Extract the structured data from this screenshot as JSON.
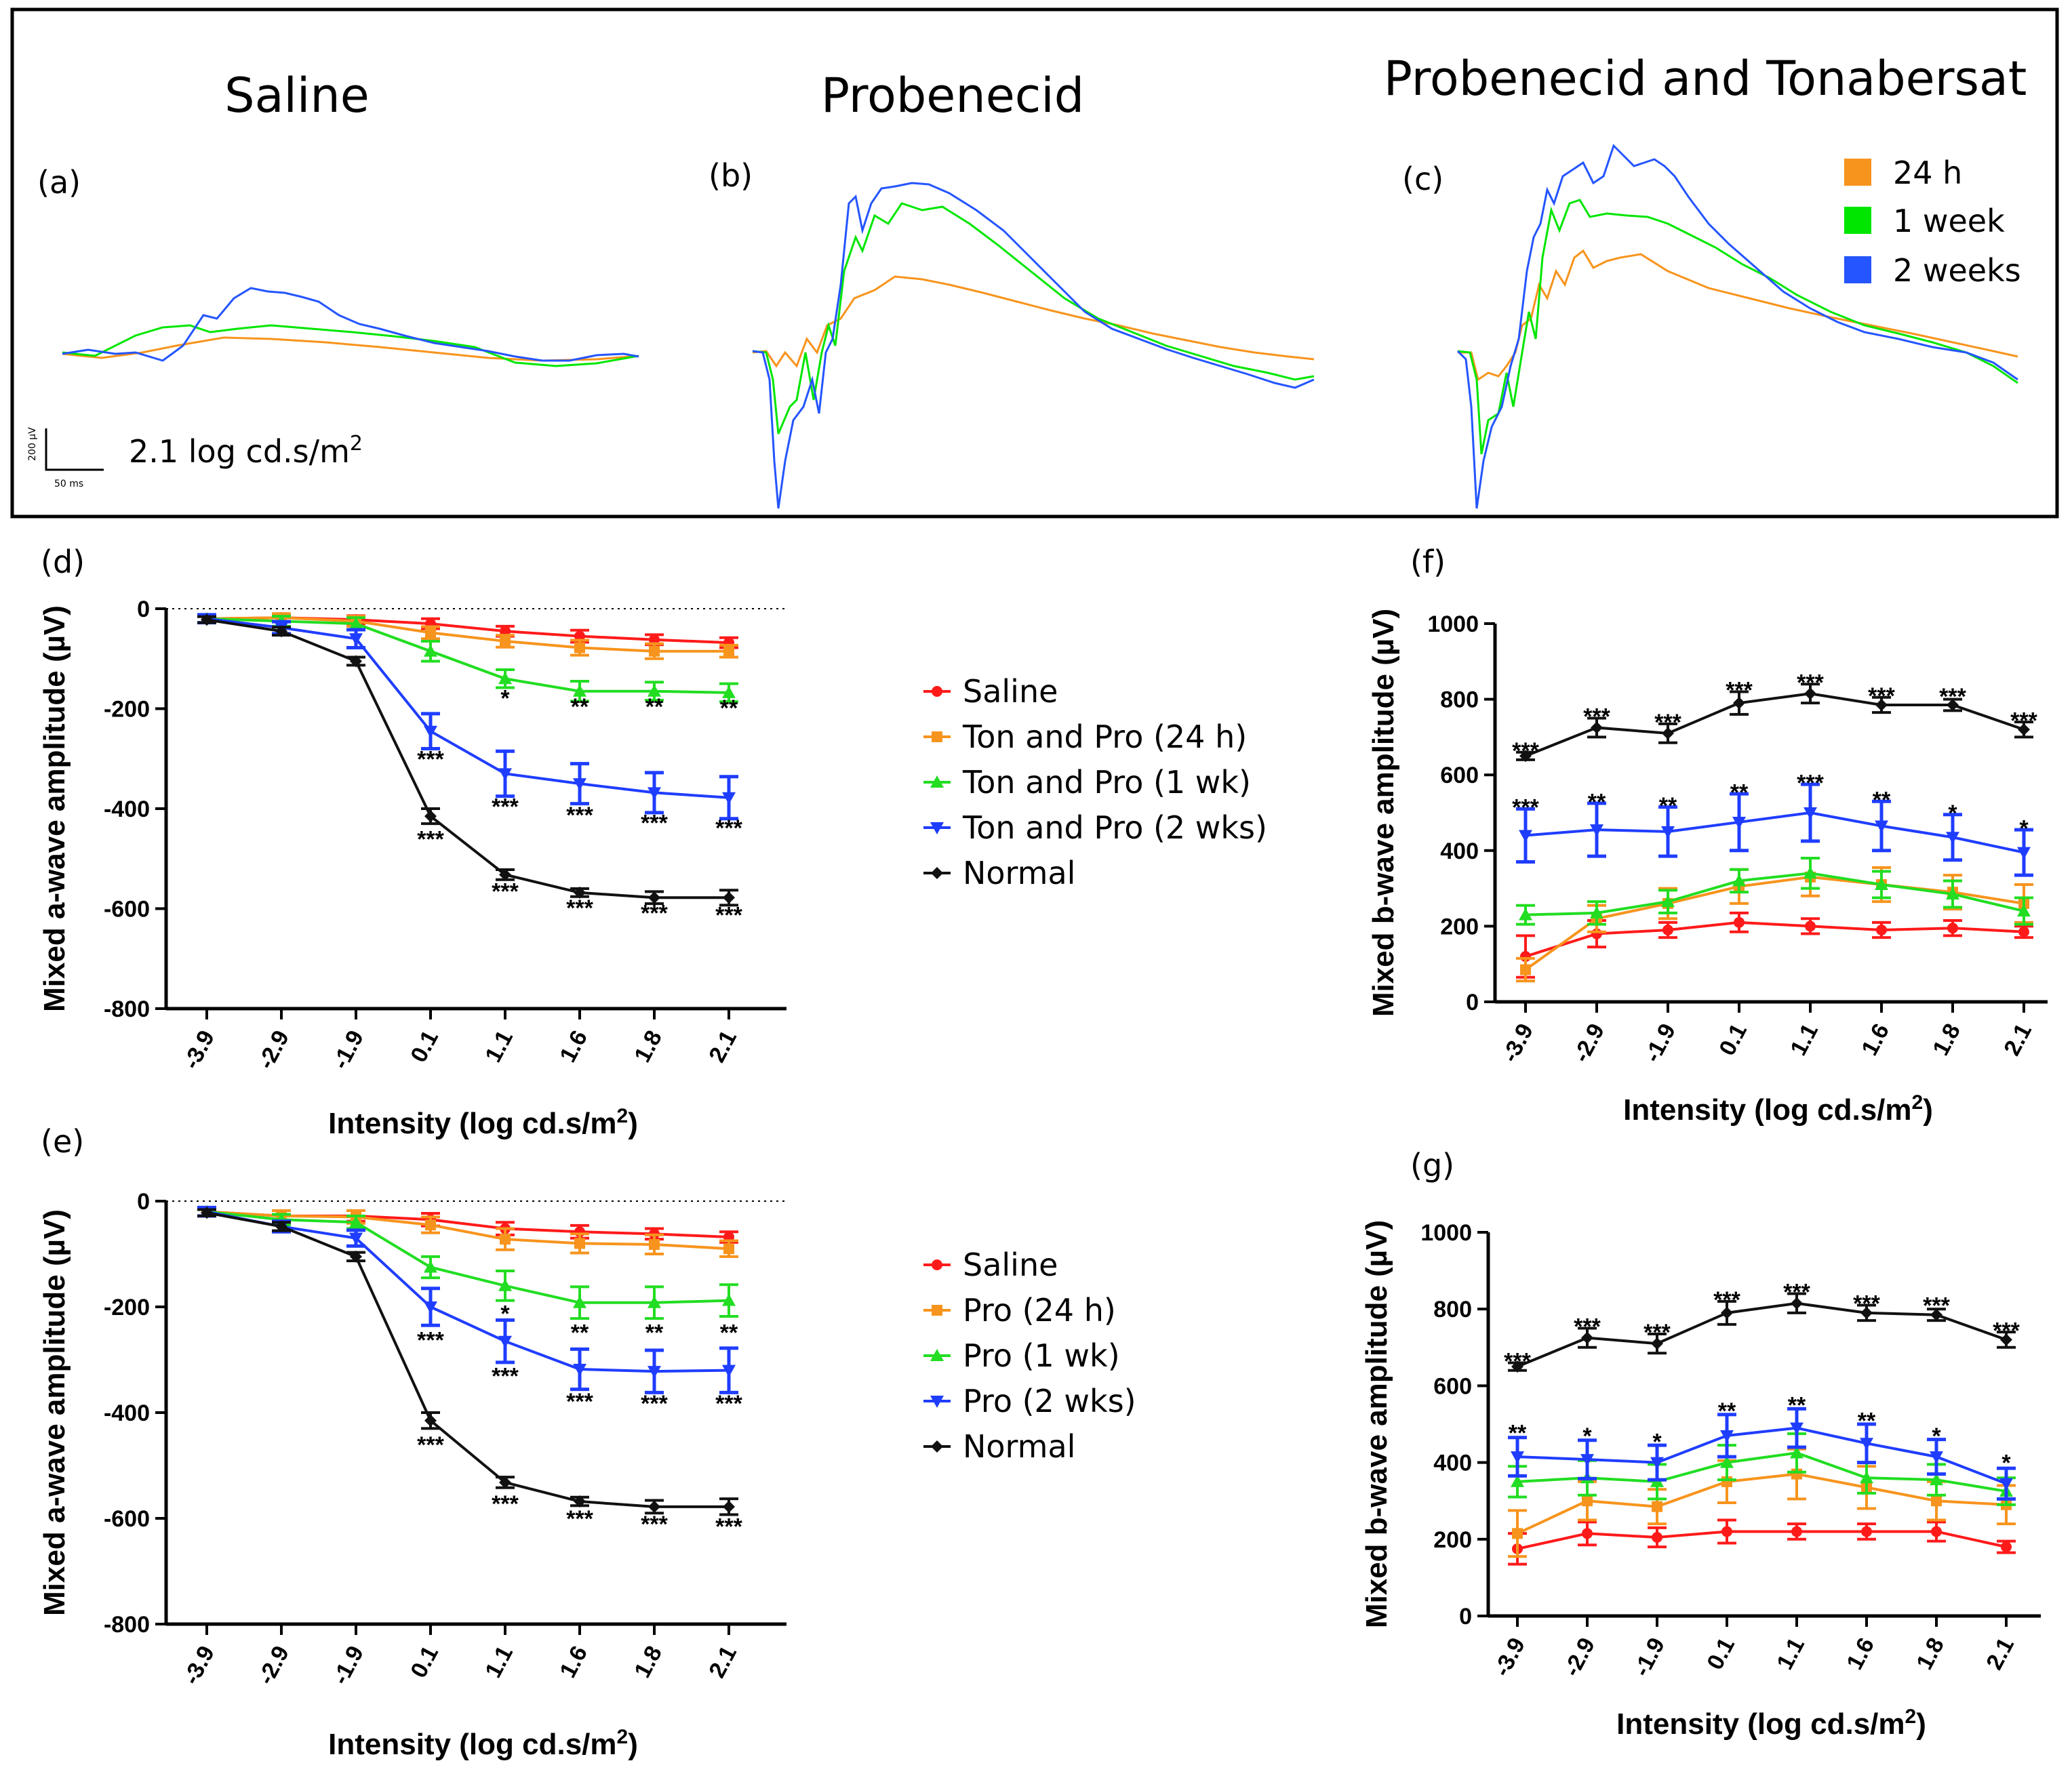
{
  "top_panels": [
    {
      "letter": "(a)",
      "title": "Saline"
    },
    {
      "letter": "(b)",
      "title": "Probenecid"
    },
    {
      "letter": "(c)",
      "title": "Probenecid and Tonabersat"
    }
  ],
  "trace_legend": [
    {
      "label": "24 h",
      "color": "#f7941d"
    },
    {
      "label": "1 week",
      "color": "#00e600"
    },
    {
      "label": "2 weeks",
      "color": "#2455ff"
    }
  ],
  "scale_bar": {
    "intensity_label": "2.1 log cd.s/m",
    "intensity_sup": "2",
    "y_label": "200 µV",
    "x_label": "50 ms"
  },
  "series_colors": {
    "Saline": "#ff1a1a",
    "24h": "#f7941d",
    "1wk": "#22dd22",
    "2wks": "#1f3dff",
    "Normal": "#111111"
  },
  "chart_data": [
    {
      "id": "d",
      "letter": "(d)",
      "type": "line",
      "ylabel": "Mixed a-wave amplitude (µV)",
      "xlabel": "Intensity  (log cd.s/m",
      "xlabel_sup": "2",
      "xlabel_end": ")",
      "categories": [
        "-3.9",
        "-2.9",
        "-1.9",
        "0.1",
        "1.1",
        "1.6",
        "1.8",
        "2.1"
      ],
      "ylim": [
        -800,
        0
      ],
      "yticks": [
        0,
        -200,
        -400,
        -600,
        -800
      ],
      "zero_line": true,
      "series": [
        {
          "name": "Saline",
          "key": "Saline",
          "values": [
            -20,
            -18,
            -22,
            -30,
            -45,
            -55,
            -62,
            -68
          ],
          "err": [
            8,
            8,
            8,
            10,
            10,
            12,
            10,
            10
          ]
        },
        {
          "name": "Ton and Pro (24 h)",
          "key": "24h",
          "values": [
            -20,
            -18,
            -25,
            -48,
            -65,
            -78,
            -85,
            -85
          ],
          "err": [
            8,
            8,
            10,
            12,
            12,
            15,
            15,
            12
          ]
        },
        {
          "name": "Ton and Pro (1 wk)",
          "key": "1wk",
          "values": [
            -20,
            -25,
            -30,
            -85,
            -140,
            -165,
            -165,
            -168
          ],
          "err": [
            8,
            10,
            12,
            20,
            18,
            20,
            18,
            18
          ]
        },
        {
          "name": "Ton and Pro (2 wks)",
          "key": "2wks",
          "values": [
            -20,
            -38,
            -60,
            -245,
            -330,
            -350,
            -368,
            -378
          ],
          "err": [
            8,
            12,
            18,
            35,
            45,
            40,
            40,
            42
          ]
        },
        {
          "name": "Normal",
          "key": "Normal",
          "values": [
            -22,
            -45,
            -105,
            -415,
            -532,
            -568,
            -578,
            -578
          ],
          "err": [
            6,
            8,
            8,
            15,
            10,
            8,
            12,
            15
          ]
        }
      ],
      "annotations": [
        {
          "x": "1.1",
          "y": -178,
          "text": "*"
        },
        {
          "x": "1.6",
          "y": -195,
          "text": "**"
        },
        {
          "x": "1.8",
          "y": -195,
          "text": "**"
        },
        {
          "x": "2.1",
          "y": -198,
          "text": "**"
        },
        {
          "x": "0.1",
          "y": -300,
          "text": "***"
        },
        {
          "x": "1.1",
          "y": -395,
          "text": "***"
        },
        {
          "x": "1.6",
          "y": -412,
          "text": "***"
        },
        {
          "x": "1.8",
          "y": -428,
          "text": "***"
        },
        {
          "x": "2.1",
          "y": -438,
          "text": "***"
        },
        {
          "x": "0.1",
          "y": -460,
          "text": "***"
        },
        {
          "x": "1.1",
          "y": -565,
          "text": "***"
        },
        {
          "x": "1.6",
          "y": -598,
          "text": "***"
        },
        {
          "x": "1.8",
          "y": -608,
          "text": "***"
        },
        {
          "x": "2.1",
          "y": -612,
          "text": "***"
        }
      ]
    },
    {
      "id": "e",
      "letter": "(e)",
      "type": "line",
      "ylabel": "Mixed a-wave amplitude (µV)",
      "xlabel": "Intensity  (log cd.s/m",
      "xlabel_sup": "2",
      "xlabel_end": ")",
      "categories": [
        "-3.9",
        "-2.9",
        "-1.9",
        "0.1",
        "1.1",
        "1.6",
        "1.8",
        "2.1"
      ],
      "ylim": [
        -800,
        0
      ],
      "yticks": [
        0,
        -200,
        -400,
        -600,
        -800
      ],
      "zero_line": true,
      "series": [
        {
          "name": "Saline",
          "key": "Saline",
          "values": [
            -20,
            -28,
            -28,
            -35,
            -52,
            -58,
            -62,
            -68
          ],
          "err": [
            8,
            10,
            10,
            12,
            12,
            12,
            10,
            10
          ]
        },
        {
          "name": "Pro (24 h)",
          "key": "24h",
          "values": [
            -20,
            -28,
            -30,
            -45,
            -72,
            -80,
            -82,
            -90
          ],
          "err": [
            8,
            10,
            12,
            15,
            20,
            18,
            18,
            15
          ]
        },
        {
          "name": "Pro (1 wk)",
          "key": "1wk",
          "values": [
            -20,
            -35,
            -40,
            -125,
            -160,
            -192,
            -192,
            -188
          ],
          "err": [
            8,
            10,
            12,
            20,
            28,
            30,
            30,
            30
          ]
        },
        {
          "name": "Pro (2 wks)",
          "key": "2wks",
          "values": [
            -20,
            -48,
            -70,
            -200,
            -265,
            -318,
            -322,
            -320
          ],
          "err": [
            8,
            10,
            15,
            35,
            40,
            38,
            40,
            42
          ]
        },
        {
          "name": "Normal",
          "key": "Normal",
          "values": [
            -22,
            -48,
            -105,
            -415,
            -532,
            -568,
            -578,
            -578
          ],
          "err": [
            6,
            8,
            8,
            15,
            10,
            8,
            12,
            15
          ]
        }
      ],
      "annotations": [
        {
          "x": "1.1",
          "y": -212,
          "text": "*"
        },
        {
          "x": "1.6",
          "y": -248,
          "text": "**"
        },
        {
          "x": "1.8",
          "y": -248,
          "text": "**"
        },
        {
          "x": "2.1",
          "y": -248,
          "text": "**"
        },
        {
          "x": "0.1",
          "y": -262,
          "text": "***"
        },
        {
          "x": "1.1",
          "y": -330,
          "text": "***"
        },
        {
          "x": "1.6",
          "y": -378,
          "text": "***"
        },
        {
          "x": "1.8",
          "y": -382,
          "text": "***"
        },
        {
          "x": "2.1",
          "y": -382,
          "text": "***"
        },
        {
          "x": "0.1",
          "y": -460,
          "text": "***"
        },
        {
          "x": "1.1",
          "y": -572,
          "text": "***"
        },
        {
          "x": "1.6",
          "y": -600,
          "text": "***"
        },
        {
          "x": "1.8",
          "y": -610,
          "text": "***"
        },
        {
          "x": "2.1",
          "y": -615,
          "text": "***"
        }
      ]
    },
    {
      "id": "f",
      "letter": "(f)",
      "type": "line",
      "ylabel": "Mixed b-wave amplitude (µV)",
      "xlabel": "Intensity  (log cd.s/m",
      "xlabel_sup": "2",
      "xlabel_end": ")",
      "categories": [
        "-3.9",
        "-2.9",
        "-1.9",
        "0.1",
        "1.1",
        "1.6",
        "1.8",
        "2.1"
      ],
      "ylim": [
        0,
        1000
      ],
      "yticks": [
        0,
        200,
        400,
        600,
        800,
        1000
      ],
      "zero_line": false,
      "series": [
        {
          "name": "Saline",
          "key": "Saline",
          "values": [
            120,
            180,
            190,
            210,
            200,
            190,
            195,
            185
          ],
          "err": [
            55,
            35,
            20,
            25,
            20,
            20,
            20,
            15
          ]
        },
        {
          "name": "24h",
          "key": "24h",
          "values": [
            85,
            220,
            260,
            305,
            330,
            310,
            290,
            260
          ],
          "err": [
            30,
            35,
            40,
            45,
            50,
            45,
            45,
            50
          ]
        },
        {
          "name": "1wk",
          "key": "1wk",
          "values": [
            230,
            235,
            265,
            320,
            340,
            310,
            285,
            240
          ],
          "err": [
            25,
            30,
            30,
            30,
            40,
            35,
            35,
            35
          ]
        },
        {
          "name": "2wks",
          "key": "2wks",
          "values": [
            440,
            455,
            450,
            475,
            500,
            465,
            435,
            395
          ],
          "err": [
            70,
            70,
            65,
            75,
            75,
            65,
            60,
            60
          ]
        },
        {
          "name": "Normal",
          "key": "Normal",
          "values": [
            650,
            725,
            710,
            790,
            815,
            785,
            785,
            720
          ],
          "err": [
            10,
            25,
            25,
            30,
            25,
            20,
            15,
            20
          ]
        }
      ],
      "annotations": [
        {
          "x": "-3.9",
          "y": 665,
          "text": "***"
        },
        {
          "x": "-2.9",
          "y": 755,
          "text": "***"
        },
        {
          "x": "-1.9",
          "y": 740,
          "text": "***"
        },
        {
          "x": "0.1",
          "y": 825,
          "text": "***"
        },
        {
          "x": "1.1",
          "y": 845,
          "text": "***"
        },
        {
          "x": "1.6",
          "y": 810,
          "text": "***"
        },
        {
          "x": "1.8",
          "y": 808,
          "text": "***"
        },
        {
          "x": "2.1",
          "y": 745,
          "text": "***"
        },
        {
          "x": "-3.9",
          "y": 515,
          "text": "***"
        },
        {
          "x": "-2.9",
          "y": 530,
          "text": "**"
        },
        {
          "x": "-1.9",
          "y": 520,
          "text": "**"
        },
        {
          "x": "0.1",
          "y": 555,
          "text": "**"
        },
        {
          "x": "1.1",
          "y": 580,
          "text": "***"
        },
        {
          "x": "1.6",
          "y": 535,
          "text": "**"
        },
        {
          "x": "1.8",
          "y": 500,
          "text": "*"
        },
        {
          "x": "2.1",
          "y": 460,
          "text": "*"
        }
      ]
    },
    {
      "id": "g",
      "letter": "(g)",
      "type": "line",
      "ylabel": "Mixed b-wave amplitude (µV)",
      "xlabel": "Intensity  (log cd.s/m",
      "xlabel_sup": "2",
      "xlabel_end": ")",
      "categories": [
        "-3.9",
        "-2.9",
        "-1.9",
        "0.1",
        "1.1",
        "1.6",
        "1.8",
        "2.1"
      ],
      "ylim": [
        0,
        1000
      ],
      "yticks": [
        0,
        200,
        400,
        600,
        800,
        1000
      ],
      "zero_line": false,
      "series": [
        {
          "name": "Saline",
          "key": "Saline",
          "values": [
            175,
            215,
            205,
            220,
            220,
            220,
            220,
            180
          ],
          "err": [
            40,
            30,
            25,
            30,
            20,
            20,
            25,
            15
          ]
        },
        {
          "name": "24h",
          "key": "24h",
          "values": [
            215,
            300,
            285,
            350,
            370,
            335,
            300,
            290
          ],
          "err": [
            60,
            50,
            45,
            55,
            65,
            55,
            50,
            50
          ]
        },
        {
          "name": "1wk",
          "key": "1wk",
          "values": [
            350,
            360,
            350,
            400,
            425,
            360,
            355,
            325
          ],
          "err": [
            40,
            45,
            45,
            45,
            50,
            40,
            40,
            35
          ]
        },
        {
          "name": "2wks",
          "key": "2wks",
          "values": [
            415,
            408,
            400,
            470,
            490,
            450,
            415,
            345
          ],
          "err": [
            50,
            50,
            45,
            55,
            50,
            50,
            45,
            40
          ]
        },
        {
          "name": "Normal",
          "key": "Normal",
          "values": [
            650,
            725,
            710,
            790,
            815,
            790,
            785,
            720
          ],
          "err": [
            10,
            25,
            25,
            30,
            25,
            20,
            15,
            20
          ]
        }
      ],
      "annotations": [
        {
          "x": "-3.9",
          "y": 665,
          "text": "***"
        },
        {
          "x": "-2.9",
          "y": 755,
          "text": "***"
        },
        {
          "x": "-1.9",
          "y": 740,
          "text": "***"
        },
        {
          "x": "0.1",
          "y": 825,
          "text": "***"
        },
        {
          "x": "1.1",
          "y": 845,
          "text": "***"
        },
        {
          "x": "1.6",
          "y": 815,
          "text": "***"
        },
        {
          "x": "1.8",
          "y": 810,
          "text": "***"
        },
        {
          "x": "2.1",
          "y": 745,
          "text": "***"
        },
        {
          "x": "-3.9",
          "y": 478,
          "text": "**"
        },
        {
          "x": "-2.9",
          "y": 470,
          "text": "*"
        },
        {
          "x": "-1.9",
          "y": 455,
          "text": "*"
        },
        {
          "x": "0.1",
          "y": 535,
          "text": "**"
        },
        {
          "x": "1.1",
          "y": 550,
          "text": "**"
        },
        {
          "x": "1.6",
          "y": 510,
          "text": "**"
        },
        {
          "x": "1.8",
          "y": 470,
          "text": "*"
        },
        {
          "x": "2.1",
          "y": 400,
          "text": "*"
        }
      ]
    }
  ],
  "legends": {
    "d": [
      "Saline",
      "Ton and Pro (24 h)",
      "Ton and Pro (1 wk)",
      "Ton and Pro (2 wks)",
      "Normal"
    ],
    "e": [
      "Saline",
      "Pro (24 h)",
      "Pro (1 wk)",
      "Pro (2 wks)",
      "Normal"
    ]
  }
}
